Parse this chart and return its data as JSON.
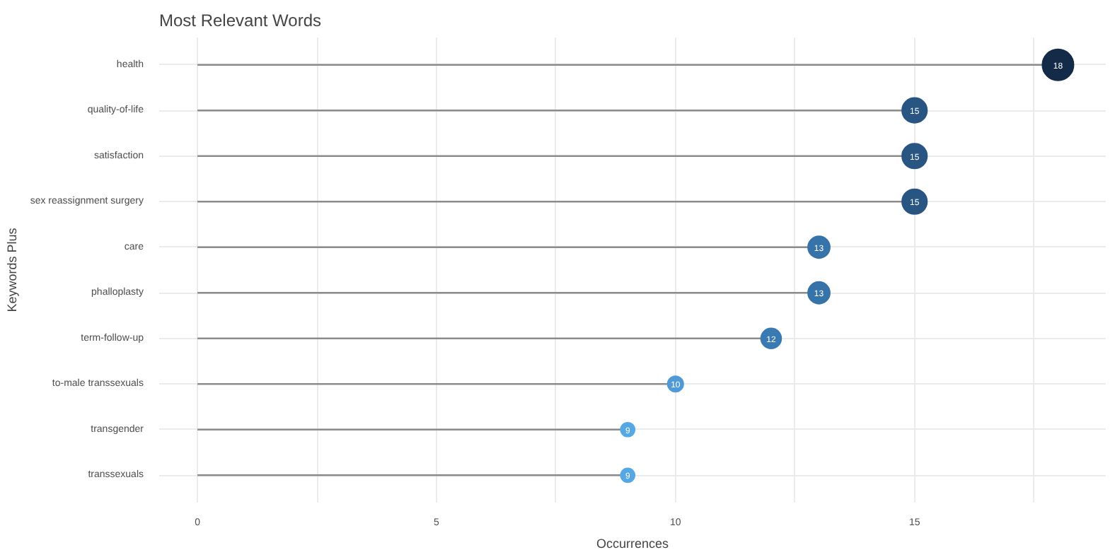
{
  "chart_data": {
    "type": "lollipop",
    "orientation": "horizontal",
    "title": "Most Relevant Words",
    "xlabel": "Occurrences",
    "ylabel": "Keywords Plus",
    "categories": [
      "health",
      "quality-of-life",
      "satisfaction",
      "sex reassignment surgery",
      "care",
      "phalloplasty",
      "term-follow-up",
      "to-male transsexuals",
      "transgender",
      "transsexuals"
    ],
    "values": [
      18,
      15,
      15,
      15,
      13,
      13,
      12,
      10,
      9,
      9
    ],
    "sizes": [
      1,
      0.64,
      0.64,
      0.64,
      0.49,
      0.49,
      0.42,
      0.25,
      0.2,
      0.2
    ],
    "colors": [
      "#132b48",
      "#285582",
      "#285582",
      "#285582",
      "#3673a8",
      "#3673a8",
      "#3a7ab2",
      "#4f9ad6",
      "#56a8e4",
      "#56a8e4"
    ],
    "xlim": [
      -0.8,
      19
    ],
    "xticks": [
      0,
      {
        "value": 2.5,
        "label": null
      },
      5,
      {
        "value": 7.5,
        "label": null
      },
      10,
      {
        "value": 12.5,
        "label": null
      },
      15,
      {
        "value": 17.5,
        "label": null
      }
    ],
    "grid": true,
    "data_labels": true
  }
}
